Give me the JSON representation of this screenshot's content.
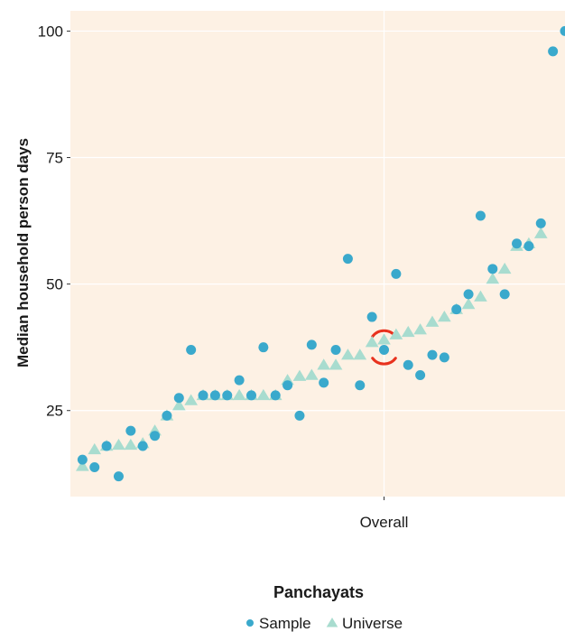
{
  "chart_data": {
    "type": "scatter",
    "xlabel": "",
    "ylabel": "Median household person days",
    "x_tick_labels": [
      "Overall"
    ],
    "y_ticks": [
      25,
      50,
      75,
      100
    ],
    "ylim": [
      8,
      104
    ],
    "grid": true,
    "background": "#fdf1e4",
    "legend": {
      "title": "Panchayats",
      "position": "bottom"
    },
    "highlight": {
      "x": 26,
      "label": "Overall",
      "color": "#e8321e"
    },
    "series": [
      {
        "name": "Sample",
        "marker": "circle",
        "color": "#3aa9cc",
        "points": [
          [
            1,
            15.3
          ],
          [
            2,
            13.8
          ],
          [
            3,
            18
          ],
          [
            4,
            12
          ],
          [
            5,
            21
          ],
          [
            6,
            18
          ],
          [
            7,
            20
          ],
          [
            8,
            24
          ],
          [
            9,
            27.5
          ],
          [
            10,
            37
          ],
          [
            11,
            28
          ],
          [
            12,
            28
          ],
          [
            13,
            28
          ],
          [
            14,
            31
          ],
          [
            15,
            28
          ],
          [
            16,
            37.5
          ],
          [
            17,
            28
          ],
          [
            18,
            30
          ],
          [
            19,
            24
          ],
          [
            20,
            38
          ],
          [
            21,
            30.5
          ],
          [
            22,
            37
          ],
          [
            23,
            55
          ],
          [
            24,
            30
          ],
          [
            25,
            43.5
          ],
          [
            26,
            37
          ],
          [
            27,
            52
          ],
          [
            28,
            34
          ],
          [
            29,
            32
          ],
          [
            30,
            36
          ],
          [
            31,
            35.5
          ],
          [
            32,
            45
          ],
          [
            33,
            48
          ],
          [
            34,
            63.5
          ],
          [
            35,
            53
          ],
          [
            36,
            48
          ],
          [
            37,
            58
          ],
          [
            38,
            57.5
          ],
          [
            39,
            62
          ],
          [
            40,
            96
          ],
          [
            41,
            100
          ]
        ]
      },
      {
        "name": "Universe",
        "marker": "triangle",
        "color": "#a8dccf",
        "points": [
          [
            1,
            14
          ],
          [
            2,
            17.3
          ],
          [
            3,
            18
          ],
          [
            4,
            18.2
          ],
          [
            5,
            18.2
          ],
          [
            6,
            18.5
          ],
          [
            7,
            21
          ],
          [
            8,
            24
          ],
          [
            9,
            26
          ],
          [
            10,
            27
          ],
          [
            11,
            28
          ],
          [
            12,
            28
          ],
          [
            13,
            28
          ],
          [
            14,
            28
          ],
          [
            15,
            28
          ],
          [
            16,
            28
          ],
          [
            17,
            28
          ],
          [
            18,
            31
          ],
          [
            19,
            31.8
          ],
          [
            20,
            32
          ],
          [
            21,
            34
          ],
          [
            22,
            34
          ],
          [
            23,
            36
          ],
          [
            24,
            36
          ],
          [
            25,
            38.5
          ],
          [
            26,
            39
          ],
          [
            27,
            40
          ],
          [
            28,
            40.5
          ],
          [
            29,
            41
          ],
          [
            30,
            42.5
          ],
          [
            31,
            43.5
          ],
          [
            32,
            45
          ],
          [
            33,
            46
          ],
          [
            34,
            47.5
          ],
          [
            35,
            51
          ],
          [
            36,
            53
          ],
          [
            37,
            57.5
          ],
          [
            38,
            58
          ],
          [
            39,
            60
          ]
        ]
      }
    ]
  }
}
